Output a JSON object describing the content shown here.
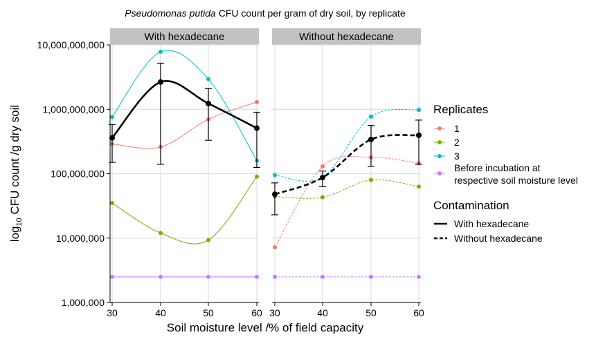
{
  "chart_data": {
    "type": "line",
    "title_italic": "Pseudomonas putida",
    "title_rest": " CFU count per gram of dry soil, by replicate",
    "xlabel": "Soil moisture level /% of field capacity",
    "ylabel_prefix": "log",
    "ylabel_sub": "10",
    "ylabel_rest": " CFU count /g dry soil",
    "y_scale": "log",
    "ylim": [
      1000000,
      10000000000
    ],
    "y_ticks": [
      1000000,
      10000000,
      100000000,
      1000000000,
      10000000000
    ],
    "y_tick_labels": [
      "1,000,000",
      "10,000,000",
      "100,000,000",
      "1,000,000,000",
      "10,000,000,000"
    ],
    "x": [
      30,
      40,
      50,
      60
    ],
    "x_tick_labels": [
      "30",
      "40",
      "50",
      "60"
    ],
    "grid": true,
    "legend_position": "right",
    "colors": {
      "1": "#F8766D",
      "2": "#7CAE00",
      "3": "#00BFC4",
      "before": "#C77CFF",
      "mean": "#000000",
      "strip": "#C2C2C2",
      "grid": "#DEDEDE"
    },
    "panels": [
      {
        "strip": "With hexadecane",
        "series": [
          {
            "key": "1",
            "values": [
              290000000,
              260000000,
              700000000,
              1300000000
            ]
          },
          {
            "key": "2",
            "values": [
              35000000,
              12000000,
              9300000,
              90000000
            ]
          },
          {
            "key": "3",
            "values": [
              760000000,
              7800000000,
              2950000000,
              160000000
            ]
          },
          {
            "key": "before",
            "values": [
              2500000,
              2500000,
              2500000,
              2500000
            ]
          }
        ],
        "mean": [
          360000000,
          2650000000,
          1230000000,
          510000000
        ],
        "error_low": [
          150000000,
          140000000,
          330000000,
          125000000
        ],
        "error_high": [
          580000000,
          5200000000,
          2100000000,
          900000000
        ]
      },
      {
        "strip": "Without hexadecane",
        "series": [
          {
            "key": "1",
            "values": [
              7200000,
              130000000,
              180000000,
              145000000
            ]
          },
          {
            "key": "2",
            "values": [
              44000000,
              43000000,
              80000000,
              63000000
            ]
          },
          {
            "key": "3",
            "values": [
              95000000,
              88000000,
              770000000,
              980000000
            ]
          },
          {
            "key": "before",
            "values": [
              2500000,
              2500000,
              2500000,
              2500000
            ]
          }
        ],
        "mean": [
          48000000,
          87000000,
          340000000,
          395000000
        ],
        "error_low": [
          23000000,
          63000000,
          130000000,
          140000000
        ],
        "error_high": [
          72000000,
          110000000,
          560000000,
          680000000
        ]
      }
    ],
    "legend": {
      "replicates_title": "Replicates",
      "replicates": [
        {
          "key": "1",
          "label": "1"
        },
        {
          "key": "2",
          "label": "2"
        },
        {
          "key": "3",
          "label": "3"
        },
        {
          "key": "before",
          "label_line1": "Before incubation at",
          "label_line2": "respective soil moisture level"
        }
      ],
      "contamination_title": "Contamination",
      "contamination": [
        {
          "style": "solid",
          "label": "With hexadecane"
        },
        {
          "style": "dashed",
          "label": "Without hexadecane"
        }
      ]
    }
  }
}
